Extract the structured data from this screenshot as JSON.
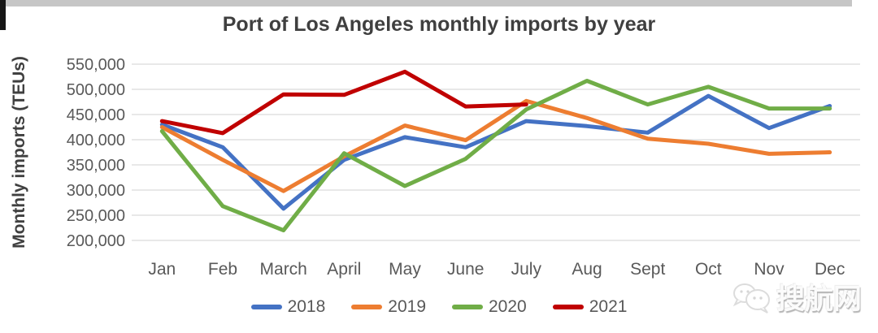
{
  "chart_data": {
    "type": "line",
    "title": "Port of Los Angeles monthly imports by year",
    "ylabel": "Monthly imports (TEUs)",
    "xlabel": "",
    "categories": [
      "Jan",
      "Feb",
      "March",
      "April",
      "May",
      "June",
      "July",
      "Aug",
      "Sept",
      "Oct",
      "Nov",
      "Dec"
    ],
    "series": [
      {
        "name": "2018",
        "color": "#4472C4",
        "values": [
          430000,
          385000,
          263000,
          360000,
          405000,
          385000,
          437000,
          427000,
          414000,
          487000,
          423000,
          467000
        ]
      },
      {
        "name": "2019",
        "color": "#ED7D31",
        "values": [
          425000,
          360000,
          298000,
          367000,
          428000,
          399000,
          477000,
          443000,
          402000,
          392000,
          372000,
          375000
        ]
      },
      {
        "name": "2020",
        "color": "#70AD47",
        "values": [
          417000,
          268000,
          220000,
          373000,
          308000,
          362000,
          460000,
          517000,
          470000,
          505000,
          462000,
          462000
        ]
      },
      {
        "name": "2021",
        "color": "#C00000",
        "values": [
          437000,
          413000,
          490000,
          489000,
          535000,
          466000,
          470000,
          null,
          null,
          null,
          null,
          null
        ]
      }
    ],
    "ylim": [
      200000,
      550000
    ],
    "ytick_step": 50000,
    "grid": true,
    "grid_color": "#D9D9D9",
    "tick_label_color": "#595959",
    "axis_title_color": "#404040",
    "legend_position": "bottom"
  },
  "watermark": {
    "text": "搜航网",
    "logo": "wechat-bubbles-icon"
  }
}
